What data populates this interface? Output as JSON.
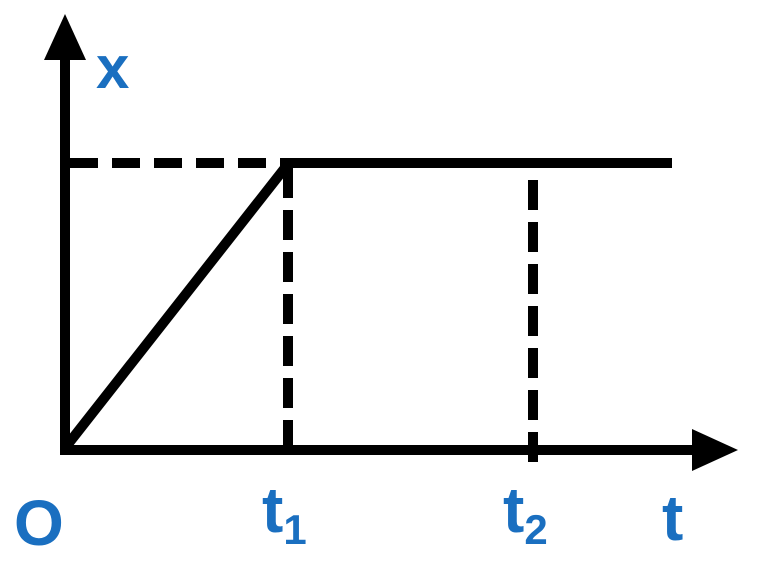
{
  "diagram": {
    "type": "position-time graph",
    "axes": {
      "y_label": "x",
      "x_label": "t",
      "origin_label": "O"
    },
    "tick_labels": [
      {
        "base": "t",
        "sub": "1"
      },
      {
        "base": "t",
        "sub": "2"
      }
    ],
    "colors": {
      "line": "#000000",
      "label": "#1a6fc0"
    }
  }
}
